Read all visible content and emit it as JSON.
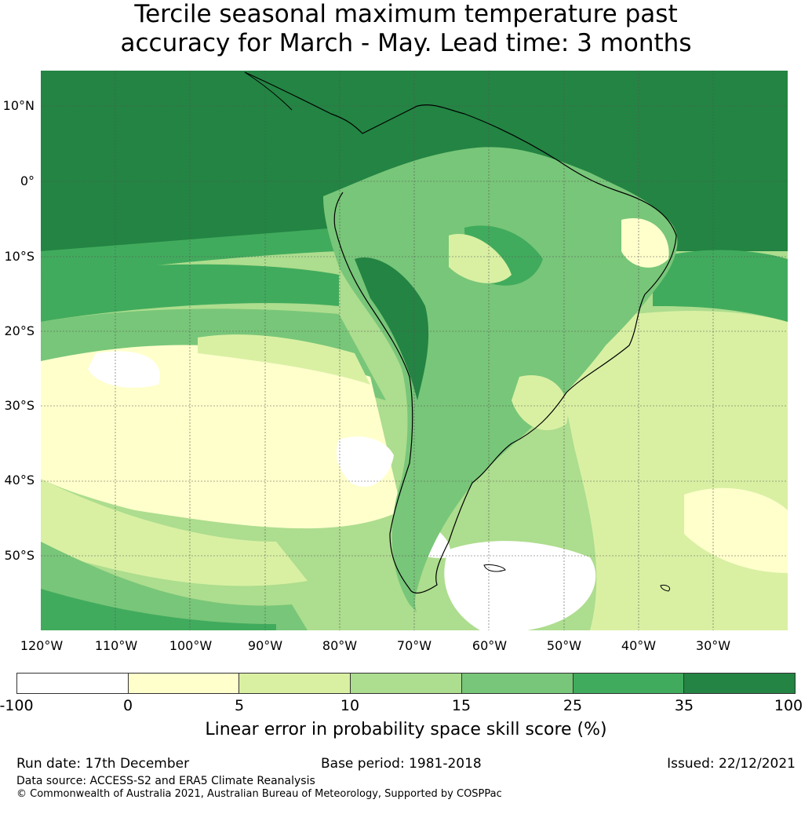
{
  "title_line1": "Tercile seasonal maximum temperature past",
  "title_line2": "accuracy for March - May. Lead time: 3 months",
  "map": {
    "lat_labels": [
      "10°N",
      "0°",
      "10°S",
      "20°S",
      "30°S",
      "40°S",
      "50°S"
    ],
    "lon_labels": [
      "120°W",
      "110°W",
      "100°W",
      "90°W",
      "80°W",
      "70°W",
      "60°W",
      "50°W",
      "40°W",
      "30°W"
    ]
  },
  "colorbar": {
    "colors": [
      "#ffffff",
      "#ffffcc",
      "#d9f0a3",
      "#addd8e",
      "#78c679",
      "#41ab5d",
      "#238443"
    ],
    "ticks": [
      "-100",
      "0",
      "5",
      "10",
      "15",
      "25",
      "35",
      "100"
    ],
    "label": "Linear error in probability space skill score (%)"
  },
  "footer": {
    "run_date": "Run date: 17th December",
    "base_period": "Base period: 1981-2018",
    "issued": "Issued: 22/12/2021",
    "data_source": "Data source: ACCESS-S2 and ERA5 Climate Reanalysis",
    "copyright": "© Commonwealth of Australia 2021, Australian Bureau of Meteorology, Supported by COSPPac"
  }
}
